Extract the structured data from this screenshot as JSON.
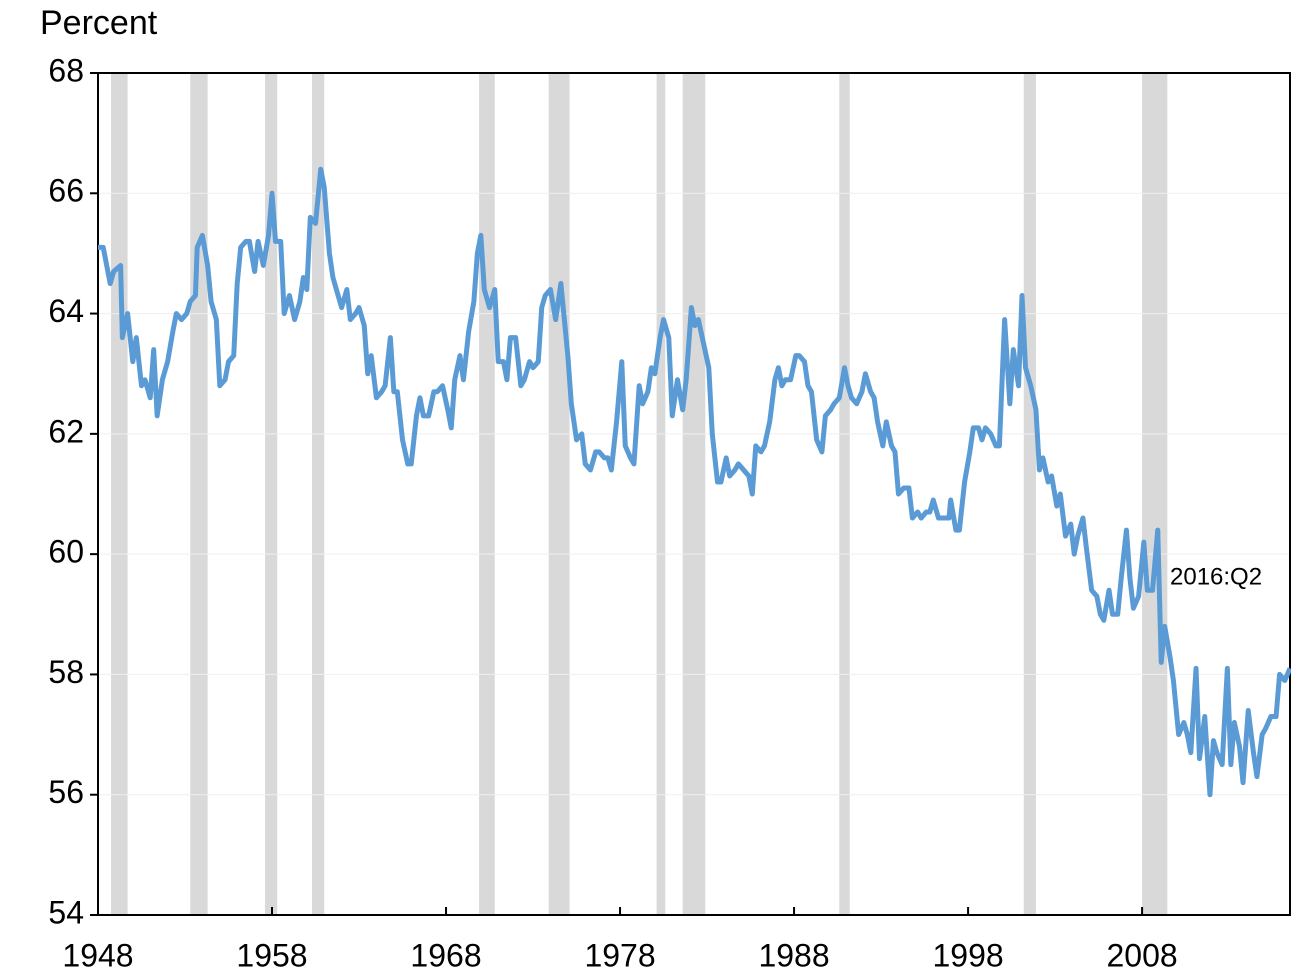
{
  "chart_data": {
    "type": "line",
    "ylabel": "Percent",
    "annotation": "2016:Q2",
    "color": "#5b9bd5",
    "shade_color": "#d9d9d9",
    "grid": true,
    "xlim": [
      1948,
      2016.5
    ],
    "xticks": [
      1948,
      1958,
      1968,
      1978,
      1988,
      1998,
      2008
    ],
    "ylim": [
      54,
      68
    ],
    "yticks": [
      54,
      56,
      58,
      60,
      62,
      64,
      66,
      68
    ],
    "shaded_periods": [
      [
        1948.75,
        1949.7
      ],
      [
        1953.3,
        1954.3
      ],
      [
        1957.6,
        1958.3
      ],
      [
        1960.3,
        1961.0
      ],
      [
        1969.9,
        1970.8
      ],
      [
        1973.9,
        1975.1
      ],
      [
        1980.1,
        1980.6
      ],
      [
        1981.6,
        1982.9
      ],
      [
        1990.6,
        1991.2
      ],
      [
        2001.2,
        2001.9
      ],
      [
        2008.0,
        2009.45
      ]
    ],
    "x": [
      1948.0,
      1948.3,
      1948.7,
      1948.9,
      1949.3,
      1949.4,
      1949.7,
      1950.0,
      1950.2,
      1950.5,
      1950.7,
      1951.0,
      1951.2,
      1951.4,
      1951.7,
      1952.0,
      1952.3,
      1952.5,
      1952.8,
      1953.1,
      1953.3,
      1953.6,
      1953.7,
      1954.0,
      1954.3,
      1954.5,
      1954.8,
      1955.0,
      1955.3,
      1955.5,
      1955.8,
      1956.0,
      1956.2,
      1956.5,
      1956.7,
      1957.0,
      1957.2,
      1957.5,
      1957.8,
      1958.0,
      1958.2,
      1958.5,
      1958.7,
      1959.0,
      1959.3,
      1959.6,
      1959.8,
      1960.0,
      1960.2,
      1960.5,
      1960.8,
      1961.0,
      1961.3,
      1961.5,
      1961.7,
      1962.0,
      1962.3,
      1962.5,
      1962.8,
      1963.0,
      1963.3,
      1963.5,
      1963.7,
      1964.0,
      1964.3,
      1964.5,
      1964.8,
      1965.0,
      1965.2,
      1965.5,
      1965.8,
      1966.0,
      1966.3,
      1966.5,
      1966.7,
      1967.0,
      1967.3,
      1967.5,
      1967.8,
      1968.1,
      1968.3,
      1968.5,
      1968.8,
      1969.0,
      1969.3,
      1969.6,
      1969.8,
      1970.0,
      1970.2,
      1970.5,
      1970.8,
      1971.0,
      1971.3,
      1971.5,
      1971.7,
      1972.0,
      1972.3,
      1972.5,
      1972.8,
      1973.0,
      1973.3,
      1973.5,
      1973.7,
      1974.0,
      1974.3,
      1974.6,
      1974.8,
      1975.0,
      1975.2,
      1975.5,
      1975.8,
      1976.0,
      1976.3,
      1976.6,
      1976.8,
      1977.1,
      1977.3,
      1977.5,
      1977.8,
      1978.1,
      1978.3,
      1978.6,
      1978.8,
      1979.1,
      1979.3,
      1979.6,
      1979.8,
      1980.0,
      1980.3,
      1980.5,
      1980.8,
      1981.0,
      1981.3,
      1981.6,
      1981.8,
      1982.1,
      1982.3,
      1982.5,
      1982.8,
      1983.1,
      1983.3,
      1983.6,
      1983.8,
      1984.1,
      1984.3,
      1984.6,
      1984.8,
      1985.1,
      1985.4,
      1985.6,
      1985.8,
      1986.1,
      1986.3,
      1986.6,
      1986.9,
      1987.1,
      1987.3,
      1987.5,
      1987.8,
      1988.1,
      1988.3,
      1988.6,
      1988.8,
      1989.0,
      1989.3,
      1989.6,
      1989.8,
      1990.1,
      1990.3,
      1990.6,
      1990.9,
      1991.1,
      1991.3,
      1991.6,
      1991.9,
      1992.1,
      1992.4,
      1992.6,
      1992.8,
      1993.1,
      1993.3,
      1993.6,
      1993.8,
      1994.0,
      1994.3,
      1994.6,
      1994.8,
      1995.1,
      1995.3,
      1995.6,
      1995.8,
      1996.0,
      1996.3,
      1996.6,
      1996.9,
      1997.0,
      1997.3,
      1997.5,
      1997.8,
      1998.1,
      1998.3,
      1998.6,
      1998.8,
      1999.0,
      1999.3,
      1999.6,
      1999.8,
      2000.1,
      2000.4,
      2000.6,
      2000.9,
      2001.1,
      2001.3,
      2001.6,
      2001.9,
      2002.1,
      2002.3,
      2002.6,
      2002.8,
      2003.1,
      2003.3,
      2003.6,
      2003.9,
      2004.1,
      2004.3,
      2004.6,
      2004.8,
      2005.1,
      2005.4,
      2005.6,
      2005.8,
      2006.1,
      2006.3,
      2006.6,
      2006.8,
      2007.1,
      2007.3,
      2007.5,
      2007.8,
      2008.1,
      2008.3,
      2008.6,
      2008.9,
      2009.1,
      2009.3,
      2009.6,
      2009.8,
      2010.1,
      2010.4,
      2010.6,
      2010.8,
      2011.1,
      2011.3,
      2011.6,
      2011.9,
      2012.1,
      2012.3,
      2012.6,
      2012.9,
      2013.1,
      2013.3,
      2013.6,
      2013.8,
      2014.1,
      2014.4,
      2014.6,
      2014.9,
      2015.1,
      2015.4,
      2015.7,
      2015.9,
      2016.2,
      2016.5
    ],
    "values": [
      65.1,
      65.1,
      64.5,
      64.7,
      64.8,
      63.6,
      64.0,
      63.2,
      63.6,
      62.8,
      62.9,
      62.6,
      63.4,
      62.3,
      62.9,
      63.2,
      63.7,
      64.0,
      63.9,
      64.0,
      64.2,
      64.3,
      65.1,
      65.3,
      64.8,
      64.2,
      63.9,
      62.8,
      62.9,
      63.2,
      63.3,
      64.5,
      65.1,
      65.2,
      65.2,
      64.7,
      65.2,
      64.8,
      65.3,
      66.0,
      65.2,
      65.2,
      64.0,
      64.3,
      63.9,
      64.2,
      64.6,
      64.4,
      65.6,
      65.5,
      66.4,
      66.1,
      65.0,
      64.6,
      64.4,
      64.1,
      64.4,
      63.9,
      64.0,
      64.1,
      63.8,
      63.0,
      63.3,
      62.6,
      62.7,
      62.8,
      63.6,
      62.7,
      62.7,
      61.9,
      61.5,
      61.5,
      62.3,
      62.6,
      62.3,
      62.3,
      62.7,
      62.7,
      62.8,
      62.4,
      62.1,
      62.9,
      63.3,
      62.9,
      63.7,
      64.2,
      65.0,
      65.3,
      64.4,
      64.1,
      64.4,
      63.2,
      63.2,
      62.9,
      63.6,
      63.6,
      62.8,
      62.9,
      63.2,
      63.1,
      63.2,
      64.1,
      64.3,
      64.4,
      63.9,
      64.5,
      63.9,
      63.3,
      62.5,
      61.9,
      62.0,
      61.5,
      61.4,
      61.7,
      61.7,
      61.6,
      61.6,
      61.4,
      62.2,
      63.2,
      61.8,
      61.6,
      61.5,
      62.8,
      62.5,
      62.7,
      63.1,
      63.0,
      63.6,
      63.9,
      63.6,
      62.3,
      62.9,
      62.4,
      62.9,
      64.1,
      63.8,
      63.9,
      63.5,
      63.1,
      62.0,
      61.2,
      61.2,
      61.6,
      61.3,
      61.4,
      61.5,
      61.4,
      61.3,
      61.0,
      61.8,
      61.7,
      61.8,
      62.2,
      62.9,
      63.1,
      62.8,
      62.9,
      62.9,
      63.3,
      63.3,
      63.2,
      62.8,
      62.7,
      61.9,
      61.7,
      62.3,
      62.4,
      62.5,
      62.6,
      63.1,
      62.8,
      62.6,
      62.5,
      62.7,
      63.0,
      62.7,
      62.6,
      62.2,
      61.8,
      62.2,
      61.8,
      61.7,
      61.0,
      61.1,
      61.1,
      60.6,
      60.7,
      60.6,
      60.7,
      60.7,
      60.9,
      60.6,
      60.6,
      60.6,
      60.9,
      60.4,
      60.4,
      61.2,
      61.7,
      62.1,
      62.1,
      61.9,
      62.1,
      62.0,
      61.8,
      61.8,
      63.9,
      62.5,
      63.4,
      62.8,
      64.3,
      63.1,
      62.8,
      62.4,
      61.4,
      61.6,
      61.2,
      61.3,
      60.8,
      61.0,
      60.3,
      60.5,
      60.0,
      60.3,
      60.6,
      60.1,
      59.4,
      59.3,
      59.0,
      58.9,
      59.4,
      59.0,
      59.0,
      59.6,
      60.4,
      59.6,
      59.1,
      59.3,
      60.2,
      59.4,
      59.4,
      60.4,
      58.2,
      58.8,
      58.3,
      57.9,
      57.0,
      57.2,
      57.0,
      56.7,
      58.1,
      56.6,
      57.3,
      56.0,
      56.9,
      56.7,
      56.5,
      58.1,
      56.5,
      57.2,
      56.8,
      56.2,
      57.4,
      56.7,
      56.3,
      57.0,
      57.1,
      57.3,
      57.3,
      58.0,
      57.9,
      58.1
    ]
  }
}
